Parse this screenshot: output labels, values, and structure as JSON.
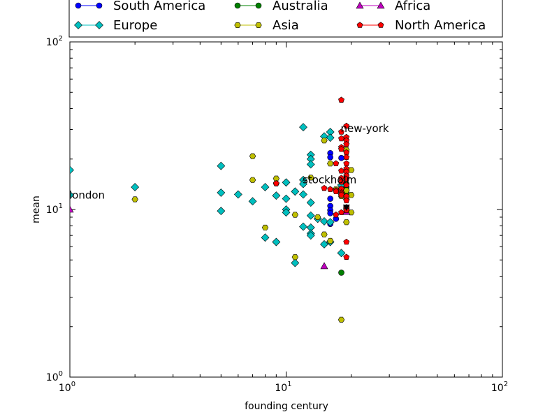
{
  "chart_data": {
    "type": "scatter",
    "title": "",
    "xlabel": "founding century",
    "ylabel": "mean",
    "xscale": "log",
    "yscale": "log",
    "xlim": [
      1,
      100
    ],
    "ylim": [
      1,
      100
    ],
    "grid": false,
    "legend_position": "top",
    "x_ticks": [
      1,
      10,
      100
    ],
    "y_ticks": [
      1,
      10,
      100
    ],
    "x_tick_labels": [
      {
        "base": "10",
        "exp": "0"
      },
      {
        "base": "10",
        "exp": "1"
      },
      {
        "base": "10",
        "exp": "2"
      }
    ],
    "y_tick_labels": [
      {
        "base": "10",
        "exp": "0"
      },
      {
        "base": "10",
        "exp": "1"
      },
      {
        "base": "10",
        "exp": "2"
      }
    ],
    "series": [
      {
        "name": "South America",
        "color": "#0000ff",
        "marker": "circle",
        "points": [
          [
            16,
            21.7
          ],
          [
            16,
            20.5
          ],
          [
            16,
            11.6
          ],
          [
            16,
            10.5
          ],
          [
            16,
            9.9
          ],
          [
            16,
            9.5
          ],
          [
            16,
            8.2
          ],
          [
            17,
            8.8
          ],
          [
            18,
            13.8
          ],
          [
            18,
            12.3
          ],
          [
            18,
            20.3
          ],
          [
            19,
            13.0
          ]
        ]
      },
      {
        "name": "Europe",
        "color": "#00bfbf",
        "marker": "diamond",
        "points": [
          [
            1,
            17.2
          ],
          [
            1,
            12.2
          ],
          [
            2,
            13.6
          ],
          [
            5,
            18.2
          ],
          [
            5,
            12.6
          ],
          [
            5,
            9.8
          ],
          [
            6,
            12.3
          ],
          [
            7,
            11.2
          ],
          [
            8,
            13.6
          ],
          [
            8,
            6.8
          ],
          [
            9,
            12.1
          ],
          [
            9,
            6.4
          ],
          [
            10,
            14.5
          ],
          [
            10,
            11.6
          ],
          [
            10,
            10.0
          ],
          [
            10,
            9.6
          ],
          [
            11,
            12.8
          ],
          [
            11,
            4.8
          ],
          [
            12,
            31.0
          ],
          [
            12,
            15.0
          ],
          [
            12,
            14.2
          ],
          [
            12,
            12.3
          ],
          [
            12,
            7.9
          ],
          [
            13,
            21.2
          ],
          [
            13,
            20.0
          ],
          [
            13,
            18.6
          ],
          [
            13,
            11.0
          ],
          [
            13,
            9.2
          ],
          [
            13,
            7.8
          ],
          [
            13,
            7.2
          ],
          [
            13,
            7.0
          ],
          [
            14,
            8.8
          ],
          [
            15,
            27.3
          ],
          [
            15,
            8.5
          ],
          [
            15,
            6.2
          ],
          [
            16,
            29.0
          ],
          [
            16,
            26.8
          ],
          [
            16,
            8.4
          ],
          [
            16,
            6.4
          ],
          [
            18,
            14.0
          ],
          [
            18,
            5.5
          ]
        ]
      },
      {
        "name": "Australia",
        "color": "#008000",
        "marker": "circle",
        "points": [
          [
            18,
            4.2
          ],
          [
            19,
            14.2
          ],
          [
            19,
            13.6
          ],
          [
            19,
            12.4
          ],
          [
            19,
            10.0
          ]
        ]
      },
      {
        "name": "Asia",
        "color": "#bfbf00",
        "marker": "hexagon",
        "points": [
          [
            2,
            11.5
          ],
          [
            7,
            20.8
          ],
          [
            7,
            15.0
          ],
          [
            8,
            7.8
          ],
          [
            9,
            15.3
          ],
          [
            9,
            14.3
          ],
          [
            11,
            9.3
          ],
          [
            11,
            5.2
          ],
          [
            13,
            15.5
          ],
          [
            14,
            9.0
          ],
          [
            15,
            25.8
          ],
          [
            15,
            7.1
          ],
          [
            16,
            18.8
          ],
          [
            16,
            6.5
          ],
          [
            17,
            13.2
          ],
          [
            18,
            2.2
          ],
          [
            18,
            12.0
          ],
          [
            19,
            22.7
          ],
          [
            19,
            17.0
          ],
          [
            19,
            15.4
          ],
          [
            19,
            13.0
          ],
          [
            19,
            11.5
          ],
          [
            19,
            10.2
          ],
          [
            19,
            8.4
          ],
          [
            20,
            17.2
          ],
          [
            20,
            12.2
          ],
          [
            20,
            9.6
          ]
        ]
      },
      {
        "name": "Africa",
        "color": "#bf00bf",
        "marker": "triangle",
        "points": [
          [
            1,
            10.0
          ],
          [
            15,
            4.6
          ],
          [
            19,
            9.7
          ]
        ]
      },
      {
        "name": "North America",
        "color": "#ff0000",
        "marker": "pentagon",
        "points": [
          [
            9,
            14.3
          ],
          [
            15,
            13.4
          ],
          [
            16,
            13.2
          ],
          [
            17,
            13.0
          ],
          [
            17,
            12.8
          ],
          [
            17,
            18.8
          ],
          [
            17,
            9.3
          ],
          [
            18,
            45.0
          ],
          [
            18,
            29.0
          ],
          [
            18,
            26.5
          ],
          [
            18,
            23.5
          ],
          [
            18,
            22.9
          ],
          [
            18,
            17.0
          ],
          [
            18,
            15.4
          ],
          [
            18,
            14.6
          ],
          [
            18,
            13.3
          ],
          [
            18,
            12.6
          ],
          [
            18,
            12.4
          ],
          [
            18,
            12.2
          ],
          [
            18,
            9.6
          ],
          [
            19,
            31.5
          ],
          [
            19,
            27.0
          ],
          [
            19,
            25.8
          ],
          [
            19,
            24.5
          ],
          [
            19,
            21.9
          ],
          [
            19,
            20.5
          ],
          [
            19,
            18.8
          ],
          [
            19,
            17.5
          ],
          [
            19,
            16.8
          ],
          [
            19,
            15.9
          ],
          [
            19,
            15.2
          ],
          [
            19,
            14.0
          ],
          [
            19,
            12.0
          ],
          [
            19,
            11.3
          ],
          [
            19,
            10.3
          ],
          [
            19,
            9.9
          ],
          [
            19,
            6.4
          ],
          [
            19,
            5.2
          ]
        ]
      },
      {
        "name": "",
        "color": "#000000",
        "marker": "triangle-down",
        "points": [
          [
            19,
            10.3
          ]
        ]
      }
    ],
    "legend": [
      {
        "name": "South America",
        "color": "#0000ff",
        "marker": "circle"
      },
      {
        "name": "Australia",
        "color": "#008000",
        "marker": "circle"
      },
      {
        "name": "Africa",
        "color": "#bf00bf",
        "marker": "triangle"
      },
      {
        "name": "Europe",
        "color": "#00bfbf",
        "marker": "diamond"
      },
      {
        "name": "Asia",
        "color": "#bfbf00",
        "marker": "hexagon"
      },
      {
        "name": "North America",
        "color": "#ff0000",
        "marker": "pentagon"
      }
    ],
    "annotations": [
      {
        "text": "london",
        "x": 1,
        "y": 12.2
      },
      {
        "text": "new-york",
        "x": 18,
        "y": 30.5
      },
      {
        "text": "stockholm",
        "x": 12,
        "y": 15.0
      }
    ]
  }
}
